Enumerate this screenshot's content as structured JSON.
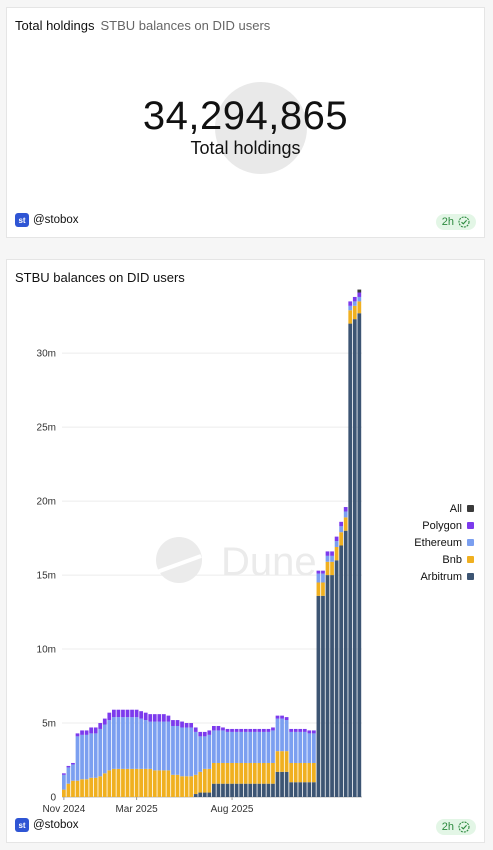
{
  "counter_card": {
    "title": "Total holdings",
    "subtitle": "STBU balances on DID users",
    "value": "34,294,865",
    "value_label": "Total holdings",
    "author": "@stobox",
    "logo_text": "st",
    "age": "2h"
  },
  "chart_card": {
    "title": "STBU balances on DID users",
    "author": "@stobox",
    "logo_text": "st",
    "age": "2h",
    "watermark": "Dune"
  },
  "chart_data": {
    "type": "bar",
    "stacked": true,
    "title": "STBU balances on DID users",
    "xlabel": "",
    "ylabel": "",
    "ylim": [
      0,
      34000000
    ],
    "yticks": [
      0,
      5000000,
      10000000,
      15000000,
      20000000,
      25000000,
      30000000
    ],
    "ytick_labels": [
      "0",
      "5m",
      "10m",
      "15m",
      "20m",
      "25m",
      "30m"
    ],
    "xtick_labels": [
      "Nov 2024",
      "Mar 2025",
      "Aug 2025"
    ],
    "xtick_positions": [
      0,
      16,
      37
    ],
    "legend_position": "right",
    "legend": [
      "All",
      "Polygon",
      "Ethereum",
      "Bnb",
      "Arbitrum"
    ],
    "colors": {
      "All": "#3a3a3a",
      "Polygon": "#7c3aed",
      "Ethereum": "#7b9ff0",
      "Bnb": "#f0b020",
      "Arbitrum": "#3d5573"
    },
    "series": [
      {
        "name": "Arbitrum",
        "values": [
          0,
          0,
          0,
          0,
          0,
          0,
          0,
          0,
          0,
          0,
          0,
          0,
          0,
          0,
          0,
          0,
          0,
          0,
          0,
          0,
          0,
          0,
          0,
          0,
          0,
          0,
          0,
          0,
          0,
          0.2,
          0.3,
          0.3,
          0.3,
          0.9,
          0.9,
          0.9,
          0.9,
          0.9,
          0.9,
          0.9,
          0.9,
          0.9,
          0.9,
          0.9,
          0.9,
          0.9,
          0.9,
          1.7,
          1.7,
          1.7,
          1.0,
          1.0,
          1.0,
          1.0,
          1.0,
          1.0,
          13.6,
          13.6,
          15.0,
          15.0,
          16.0,
          17.0,
          18.0,
          32.0,
          32.3,
          32.7
        ]
      },
      {
        "name": "Bnb",
        "values": [
          0.5,
          0.9,
          1.1,
          1.1,
          1.2,
          1.2,
          1.3,
          1.3,
          1.4,
          1.6,
          1.8,
          1.9,
          1.9,
          1.9,
          1.9,
          1.9,
          1.9,
          1.9,
          1.9,
          1.9,
          1.8,
          1.8,
          1.8,
          1.8,
          1.5,
          1.5,
          1.4,
          1.4,
          1.4,
          1.3,
          1.4,
          1.6,
          1.6,
          1.4,
          1.4,
          1.4,
          1.4,
          1.4,
          1.4,
          1.4,
          1.4,
          1.4,
          1.4,
          1.4,
          1.4,
          1.4,
          1.4,
          1.4,
          1.4,
          1.4,
          1.3,
          1.3,
          1.3,
          1.3,
          1.3,
          1.3,
          0.9,
          0.9,
          0.9,
          0.9,
          0.9,
          0.9,
          0.9,
          0.9,
          0.9,
          0.8
        ]
      },
      {
        "name": "Ethereum",
        "values": [
          1.0,
          1.1,
          1.1,
          3.0,
          3.0,
          3.0,
          3.0,
          3.0,
          3.2,
          3.3,
          3.4,
          3.5,
          3.5,
          3.5,
          3.5,
          3.5,
          3.5,
          3.4,
          3.3,
          3.2,
          3.3,
          3.3,
          3.3,
          3.3,
          3.3,
          3.3,
          3.3,
          3.3,
          3.3,
          2.9,
          2.4,
          2.2,
          2.3,
          2.2,
          2.2,
          2.2,
          2.1,
          2.1,
          2.1,
          2.1,
          2.1,
          2.1,
          2.1,
          2.1,
          2.1,
          2.1,
          2.2,
          2.2,
          2.2,
          2.1,
          2.1,
          2.1,
          2.1,
          2.1,
          2.0,
          2.0,
          0.6,
          0.6,
          0.4,
          0.4,
          0.4,
          0.4,
          0.4,
          0.3,
          0.3,
          0.3
        ]
      },
      {
        "name": "Polygon",
        "values": [
          0.1,
          0.1,
          0.1,
          0.2,
          0.3,
          0.3,
          0.4,
          0.4,
          0.4,
          0.4,
          0.5,
          0.5,
          0.5,
          0.5,
          0.5,
          0.5,
          0.5,
          0.5,
          0.5,
          0.5,
          0.5,
          0.5,
          0.5,
          0.4,
          0.4,
          0.4,
          0.4,
          0.3,
          0.3,
          0.3,
          0.3,
          0.3,
          0.3,
          0.3,
          0.3,
          0.2,
          0.2,
          0.2,
          0.2,
          0.2,
          0.2,
          0.2,
          0.2,
          0.2,
          0.2,
          0.2,
          0.2,
          0.2,
          0.2,
          0.2,
          0.2,
          0.2,
          0.2,
          0.2,
          0.2,
          0.2,
          0.2,
          0.2,
          0.3,
          0.3,
          0.3,
          0.3,
          0.3,
          0.3,
          0.3,
          0.3
        ]
      },
      {
        "name": "All",
        "values": [
          0,
          0,
          0,
          0,
          0,
          0,
          0,
          0,
          0,
          0,
          0,
          0,
          0,
          0,
          0,
          0,
          0,
          0,
          0,
          0,
          0,
          0,
          0,
          0,
          0,
          0,
          0,
          0,
          0,
          0,
          0,
          0,
          0,
          0,
          0,
          0,
          0,
          0,
          0,
          0,
          0,
          0,
          0,
          0,
          0,
          0,
          0,
          0,
          0,
          0,
          0,
          0,
          0,
          0,
          0,
          0,
          0,
          0,
          0,
          0,
          0,
          0,
          0,
          0,
          0,
          0.2
        ]
      }
    ],
    "value_unit": "millions"
  }
}
